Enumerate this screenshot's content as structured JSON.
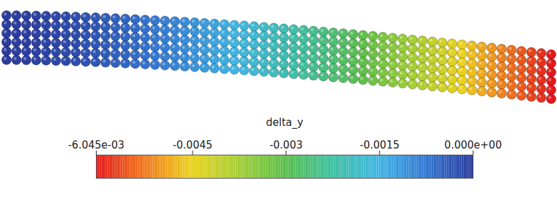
{
  "chart_data": {
    "type": "scatter",
    "x": [
      0,
      1,
      2,
      3,
      4,
      5,
      6,
      7,
      8,
      9,
      10,
      11,
      12,
      13,
      14,
      15,
      16,
      17,
      18,
      19,
      20,
      21,
      22,
      23,
      24,
      25,
      26,
      27,
      28,
      29,
      30,
      31,
      32,
      33,
      34,
      35,
      36,
      37,
      38,
      39,
      40,
      41,
      42,
      43,
      44,
      45,
      46,
      47,
      48,
      49,
      50,
      51,
      52,
      53,
      54,
      55
    ],
    "values": [
      0,
      -1e-05,
      -3e-05,
      -6e-05,
      -9e-05,
      -0.00013,
      -0.00017,
      -0.00022,
      -0.00028,
      -0.00033,
      -0.0004,
      -0.00046,
      -0.00053,
      -0.0006,
      -0.00068,
      -0.00076,
      -0.00084,
      -0.00092,
      -0.00101,
      -0.0011,
      -0.0012,
      -0.0013,
      -0.0014,
      -0.0015,
      -0.0016,
      -0.00171,
      -0.00182,
      -0.00194,
      -0.00205,
      -0.00217,
      -0.00229,
      -0.00242,
      -0.00254,
      -0.00267,
      -0.0028,
      -0.00293,
      -0.00307,
      -0.00321,
      -0.00335,
      -0.00349,
      -0.00363,
      -0.00378,
      -0.00393,
      -0.00408,
      -0.00423,
      -0.00439,
      -0.00454,
      -0.0047,
      -0.00486,
      -0.00503,
      -0.00519,
      -0.00536,
      -0.00553,
      -0.0057,
      -0.00587,
      -0.006045
    ],
    "tick_labels": false,
    "colorbar": {
      "title": "delta_y",
      "range": [
        -0.006045,
        0
      ],
      "ticks": [
        {
          "value": -0.006045,
          "label": "-6.045e-03"
        },
        -0.0045,
        -0.003,
        -0.0015,
        {
          "value": 0,
          "label": "0.000e+00"
        }
      ]
    }
  }
}
